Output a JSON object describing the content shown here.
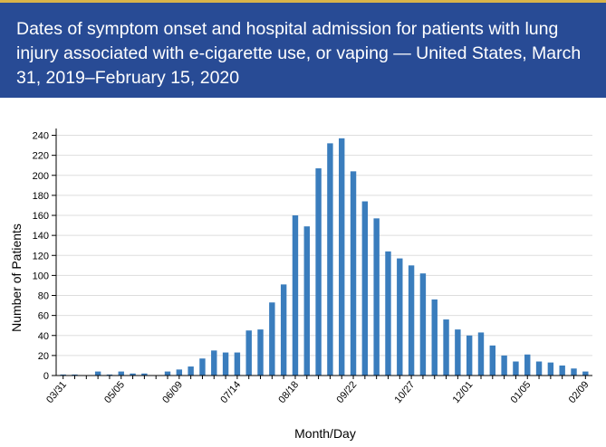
{
  "header": {
    "title": "Dates of symptom onset and hospital admission for patients with lung injury associated with e-cigarette use, or vaping — United States, March 31, 2019–February 15, 2020"
  },
  "colors": {
    "header_bg": "#284b95",
    "header_accent": "#d9b44a",
    "bar": "#3a7dbd"
  },
  "chart_data": {
    "type": "bar",
    "xlabel": "Month/Day",
    "ylabel": "Number of Patients",
    "ylim": [
      0,
      245
    ],
    "yticks": [
      0,
      20,
      40,
      60,
      80,
      100,
      120,
      140,
      160,
      180,
      200,
      220,
      240
    ],
    "grid": true,
    "xtick_labels": [
      "03/31",
      "05/05",
      "06/09",
      "07/14",
      "08/18",
      "09/22",
      "10/27",
      "12/01",
      "01/05",
      "02/09"
    ],
    "xtick_every": 5,
    "values": [
      1,
      1,
      0,
      4,
      1,
      4,
      2,
      2,
      0,
      4,
      6,
      9,
      17,
      25,
      23,
      23,
      45,
      46,
      73,
      91,
      160,
      149,
      207,
      232,
      237,
      204,
      174,
      157,
      124,
      117,
      110,
      102,
      76,
      56,
      46,
      40,
      43,
      30,
      20,
      14,
      21,
      14,
      13,
      10,
      7,
      4
    ]
  }
}
